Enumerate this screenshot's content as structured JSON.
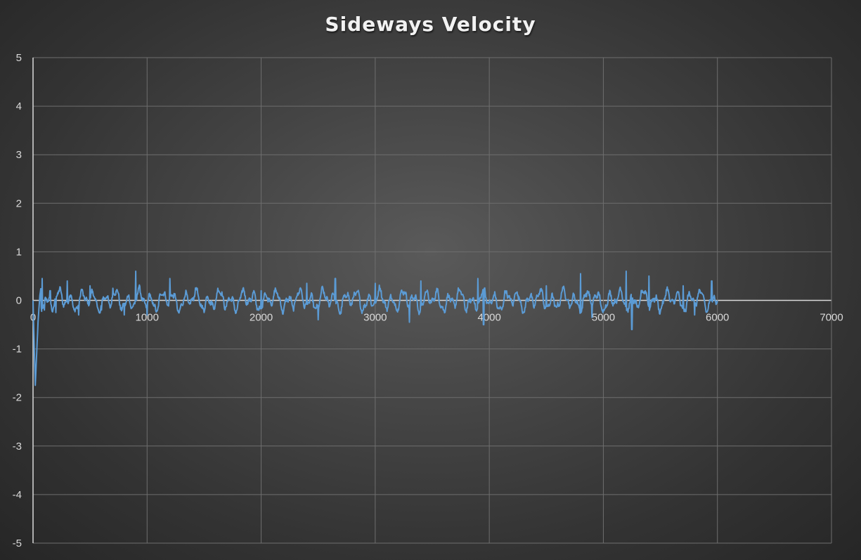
{
  "chart_data": {
    "type": "line",
    "title": "Sideways Velocity",
    "xlabel": "",
    "ylabel": "",
    "xlim": [
      0,
      7000
    ],
    "ylim": [
      -5,
      5
    ],
    "x_ticks": [
      0,
      1000,
      2000,
      3000,
      4000,
      5000,
      6000,
      7000
    ],
    "y_ticks": [
      5,
      4,
      3,
      2,
      1,
      0,
      -1,
      -2,
      -3,
      -4,
      -5
    ],
    "grid": true,
    "legend": "none",
    "colors": {
      "series": "#5b9bd5",
      "grid": "#6e6e6e",
      "zero_axis": "#d9d9d9"
    },
    "series": [
      {
        "x_range": [
          0,
          6000
        ],
        "approx_points": [
          [
            0,
            0.0
          ],
          [
            10,
            -0.9
          ],
          [
            20,
            -1.75
          ],
          [
            30,
            -1.2
          ],
          [
            45,
            -0.4
          ],
          [
            60,
            0.1
          ],
          [
            80,
            0.45
          ],
          [
            100,
            -0.2
          ],
          [
            150,
            0.2
          ],
          [
            200,
            -0.25
          ],
          [
            300,
            0.4
          ],
          [
            400,
            -0.3
          ],
          [
            500,
            0.3
          ],
          [
            600,
            -0.2
          ],
          [
            700,
            0.25
          ],
          [
            800,
            -0.3
          ],
          [
            900,
            0.6
          ],
          [
            1000,
            -0.3
          ],
          [
            1200,
            0.45
          ],
          [
            1500,
            -0.25
          ],
          [
            2000,
            0.2
          ],
          [
            2400,
            0.35
          ],
          [
            2500,
            -0.4
          ],
          [
            2650,
            0.45
          ],
          [
            3000,
            0.35
          ],
          [
            3300,
            -0.45
          ],
          [
            3400,
            0.4
          ],
          [
            3900,
            0.45
          ],
          [
            3950,
            -0.5
          ],
          [
            4500,
            0.3
          ],
          [
            4800,
            0.55
          ],
          [
            4900,
            -0.35
          ],
          [
            5200,
            0.6
          ],
          [
            5250,
            -0.6
          ],
          [
            5400,
            0.5
          ],
          [
            5700,
            0.3
          ],
          [
            5800,
            -0.3
          ],
          [
            5950,
            0.4
          ],
          [
            6000,
            0.0
          ]
        ],
        "typical_amplitude": 0.25
      }
    ]
  }
}
